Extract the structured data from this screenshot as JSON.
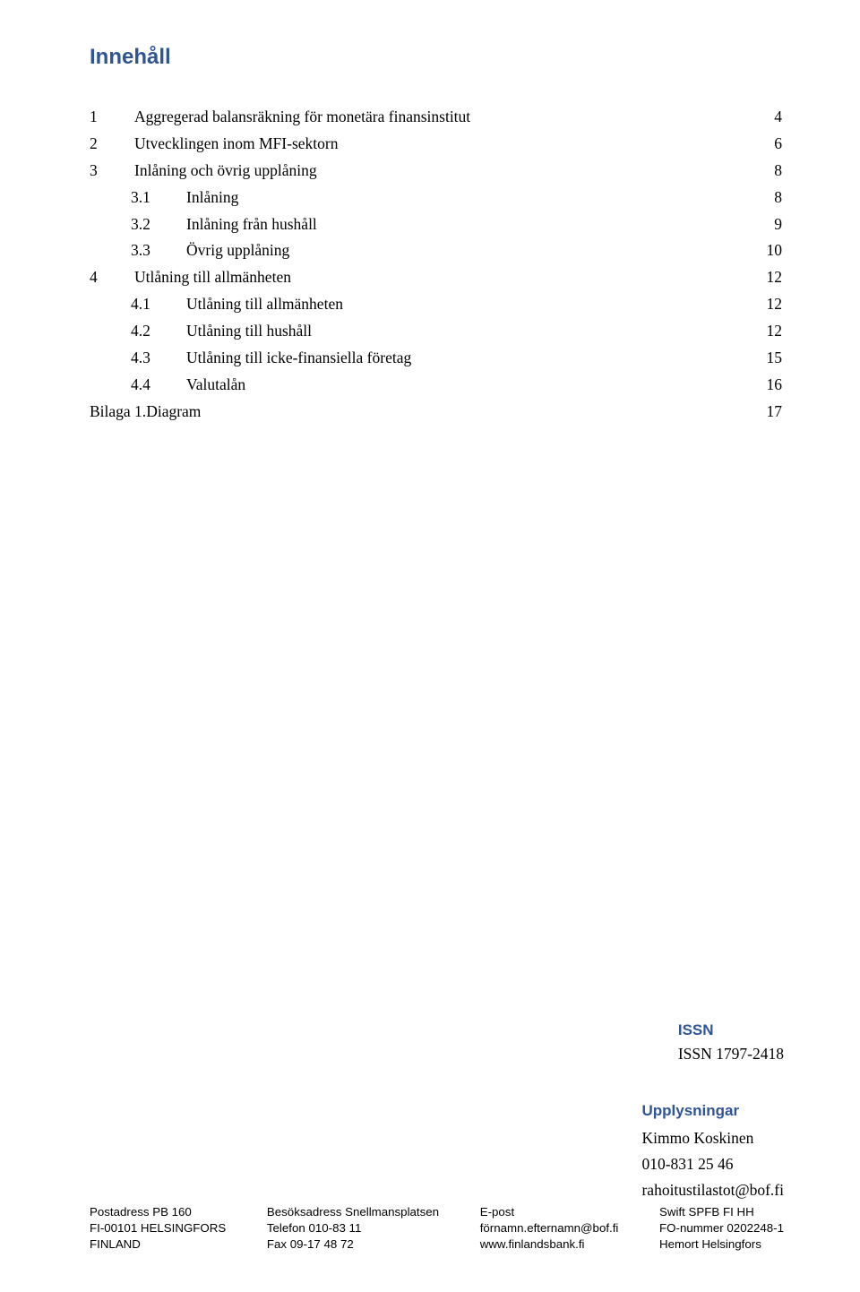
{
  "colors": {
    "heading": "#2f5597",
    "text": "#000000",
    "background": "#ffffff"
  },
  "fonts": {
    "heading_family": "Arial",
    "body_family": "Times New Roman",
    "heading_size_pt": 18,
    "body_size_pt": 13,
    "footer_size_pt": 10
  },
  "title": "Innehåll",
  "toc": [
    {
      "num": "1",
      "label": "Aggregerad balansräkning för monetära finansinstitut",
      "page": "4",
      "level": 0
    },
    {
      "num": "2",
      "label": "Utvecklingen inom MFI-sektorn",
      "page": "6",
      "level": 0
    },
    {
      "num": "3",
      "label": "Inlåning och övrig upplåning",
      "page": "8",
      "level": 0
    },
    {
      "num": "3.1",
      "label": "Inlåning",
      "page": "8",
      "level": 1
    },
    {
      "num": "3.2",
      "label": "Inlåning från hushåll",
      "page": "9",
      "level": 1
    },
    {
      "num": "3.3",
      "label": "Övrig upplåning",
      "page": "10",
      "level": 1
    },
    {
      "num": "4",
      "label": "Utlåning till allmänheten",
      "page": "12",
      "level": 0
    },
    {
      "num": "4.1",
      "label": "Utlåning till allmänheten",
      "page": "12",
      "level": 1
    },
    {
      "num": "4.2",
      "label": "Utlåning till hushåll",
      "page": "12",
      "level": 1
    },
    {
      "num": "4.3",
      "label": "Utlåning till icke-finansiella företag",
      "page": "15",
      "level": 1
    },
    {
      "num": "4.4",
      "label": "Valutalån",
      "page": "16",
      "level": 1
    },
    {
      "num": "Bilaga 1. ",
      "label": "Diagram",
      "page": "17",
      "level": 0,
      "bilaga": true
    }
  ],
  "issn": {
    "heading": "ISSN",
    "value": "ISSN 1797-2418"
  },
  "upplysningar": {
    "heading": "Upplysningar",
    "name": "Kimmo Koskinen",
    "phone": "010-831 25 46",
    "email": "rahoitustilastot@bof.fi"
  },
  "footer": {
    "col1": [
      "Postadress PB 160",
      "FI-00101 HELSINGFORS",
      "FINLAND"
    ],
    "col2": [
      "Besöksadress Snellmansplatsen",
      "Telefon 010-83 11",
      "Fax 09-17 48 72"
    ],
    "col3": [
      "E-post",
      "förnamn.efternamn@bof.fi",
      "www.finlandsbank.fi"
    ],
    "col4": [
      "Swift SPFB FI HH",
      "FO-nummer 0202248-1",
      "Hemort Helsingfors"
    ]
  }
}
